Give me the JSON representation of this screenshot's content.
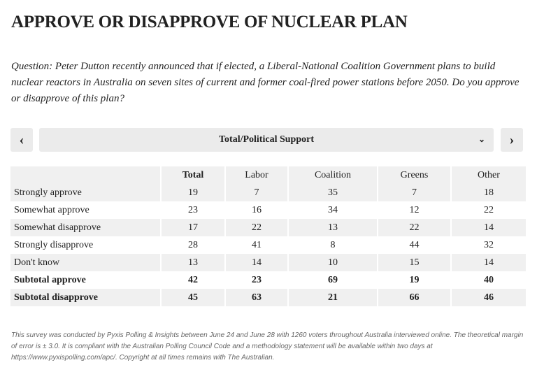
{
  "title": "APPROVE OR DISAPPROVE OF NUCLEAR PLAN",
  "question": "Question: Peter Dutton recently announced that if elected, a Liberal-National Coalition Government plans to build nuclear reactors in Australia on seven sites of current and former coal-fired power stations before 2050. Do you approve or disapprove of this plan?",
  "nav": {
    "prev": "‹",
    "next": "›",
    "selected": "Total/Political Support",
    "dropdown_icon": "⌄"
  },
  "table": {
    "headers": [
      "",
      "Total",
      "Labor",
      "Coalition",
      "Greens",
      "Other"
    ],
    "rows": [
      {
        "label": "Strongly approve",
        "values": [
          "19",
          "7",
          "35",
          "7",
          "18"
        ]
      },
      {
        "label": "Somewhat approve",
        "values": [
          "23",
          "16",
          "34",
          "12",
          "22"
        ]
      },
      {
        "label": "Somewhat disapprove",
        "values": [
          "17",
          "22",
          "13",
          "22",
          "14"
        ]
      },
      {
        "label": "Strongly disapprove",
        "values": [
          "28",
          "41",
          "8",
          "44",
          "32"
        ]
      },
      {
        "label": "Don't know",
        "values": [
          "13",
          "14",
          "10",
          "15",
          "14"
        ]
      },
      {
        "label": "Subtotal approve",
        "values": [
          "42",
          "23",
          "69",
          "19",
          "40"
        ]
      },
      {
        "label": "Subtotal disapprove",
        "values": [
          "45",
          "63",
          "21",
          "66",
          "46"
        ]
      }
    ]
  },
  "footnote": "This survey was conducted by Pyxis Polling & Insights between June 24 and June 28 with 1260 voters throughout Australia interviewed online. The theoretical margin of error is ± 3.0. It is compliant with the Australian Polling Council Code and a methodology statement will be available within two days at https://www.pyxispolling.com/apc/. Copyright at all times remains with The Australian."
}
